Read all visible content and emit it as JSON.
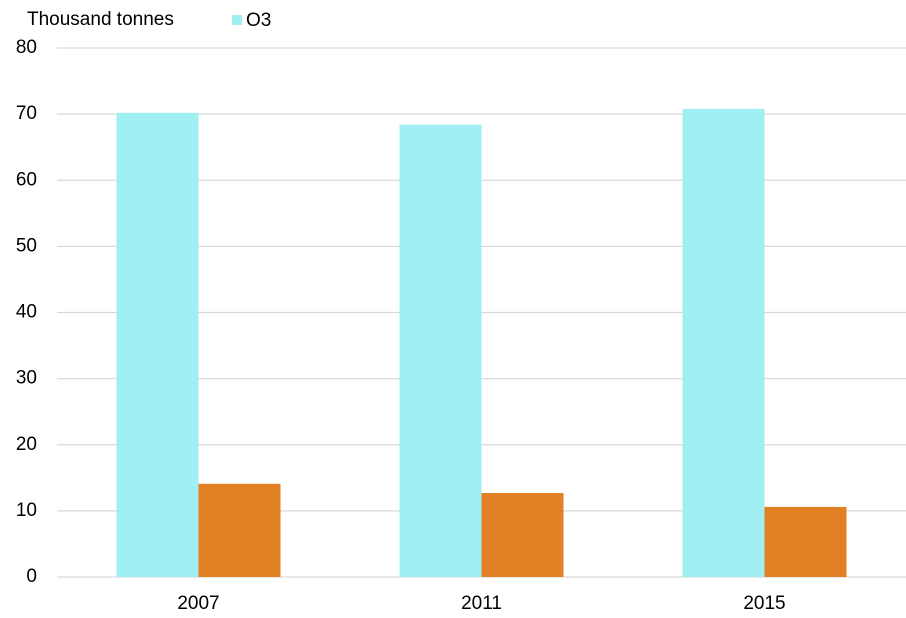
{
  "chart_data": {
    "type": "bar",
    "y_label": "Thousand tonnes",
    "categories": [
      "2007",
      "2011",
      "2015"
    ],
    "series": [
      {
        "name": "O3",
        "color": "#a0eff2",
        "values": [
          70.2,
          68.4,
          70.8
        ]
      },
      {
        "color": "#e28026",
        "values": [
          14.1,
          12.7,
          10.6
        ]
      }
    ],
    "ylim": [
      0,
      80
    ],
    "yticks": [
      0,
      10,
      20,
      30,
      40,
      50,
      60,
      70,
      80
    ],
    "grid": true
  }
}
